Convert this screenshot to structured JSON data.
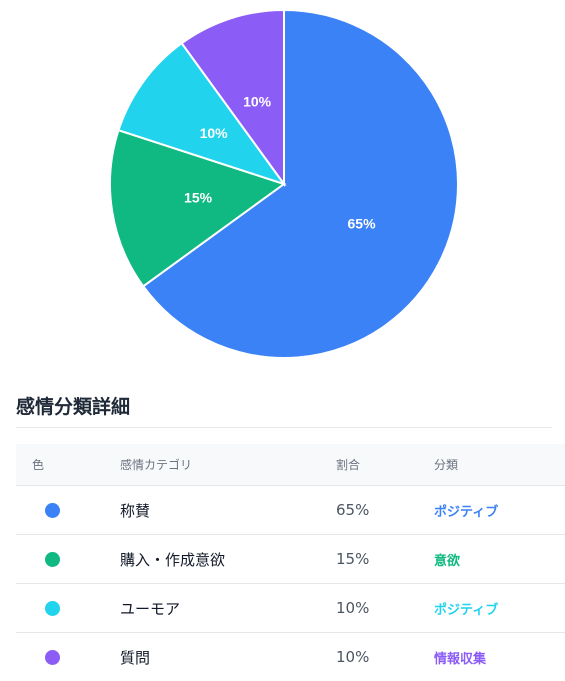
{
  "chart_data": {
    "type": "pie",
    "slices": [
      {
        "label": "称賛",
        "value": 65,
        "display": "65%",
        "color": "#3b82f6"
      },
      {
        "label": "購入・作成意欲",
        "value": 15,
        "display": "15%",
        "color": "#10b981"
      },
      {
        "label": "ユーモア",
        "value": 10,
        "display": "10%",
        "color": "#22d3ee"
      },
      {
        "label": "質問",
        "value": 10,
        "display": "10%",
        "color": "#8b5cf6"
      }
    ],
    "start": "top",
    "direction": "clockwise"
  },
  "section": {
    "title": "感情分類詳細"
  },
  "table": {
    "headers": {
      "color": "色",
      "category": "感情カテゴリ",
      "ratio": "割合",
      "classification": "分類"
    },
    "rows": [
      {
        "color": "#3b82f6",
        "category": "称賛",
        "ratio": "65%",
        "classification": "ポジティブ",
        "class_color": "#3b82f6"
      },
      {
        "color": "#10b981",
        "category": "購入・作成意欲",
        "ratio": "15%",
        "classification": "意欲",
        "class_color": "#10b981"
      },
      {
        "color": "#22d3ee",
        "category": "ユーモア",
        "ratio": "10%",
        "classification": "ポジティブ",
        "class_color": "#22d3ee"
      },
      {
        "color": "#8b5cf6",
        "category": "質問",
        "ratio": "10%",
        "classification": "情報収集",
        "class_color": "#8b5cf6"
      }
    ]
  }
}
